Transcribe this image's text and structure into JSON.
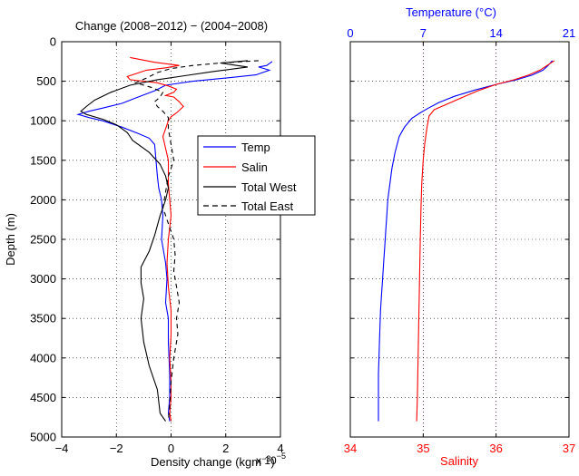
{
  "figure": {
    "background": "#ffffff"
  },
  "chart_data": [
    {
      "type": "line",
      "title": "Change (2008−2012) − (2004−2008)",
      "xlabel": "Density change (kgm",
      "xlabel_sup": "−3",
      "xlabel_tail": ")",
      "x_multiplier_base": "x 10",
      "x_multiplier_exp": "−5",
      "ylabel": "Depth (m)",
      "xlim": [
        -4,
        4
      ],
      "ylim": [
        5000,
        0
      ],
      "y_reversed": true,
      "x_ticks": [
        "−4",
        "−2",
        "0",
        "2",
        "4"
      ],
      "x_tick_values": [
        -4,
        -2,
        0,
        2,
        4
      ],
      "y_ticks": [
        "0",
        "500",
        "1000",
        "1500",
        "2000",
        "2500",
        "3000",
        "3500",
        "4000",
        "4500",
        "5000"
      ],
      "y_tick_values": [
        0,
        500,
        1000,
        1500,
        2000,
        2500,
        3000,
        3500,
        4000,
        4500,
        5000
      ],
      "grid": "dotted",
      "legend_position": "middle-right",
      "series": [
        {
          "name": "Temp",
          "color": "#0000ff",
          "dash": "solid",
          "points": [
            [
              3.7,
              250
            ],
            [
              3.5,
              300
            ],
            [
              3.2,
              320
            ],
            [
              3.6,
              360
            ],
            [
              3.1,
              420
            ],
            [
              2.0,
              460
            ],
            [
              0.8,
              500
            ],
            [
              -0.2,
              550
            ],
            [
              -0.6,
              620
            ],
            [
              -1.2,
              700
            ],
            [
              -1.8,
              780
            ],
            [
              -2.5,
              840
            ],
            [
              -3.0,
              880
            ],
            [
              -3.4,
              920
            ],
            [
              -3.0,
              960
            ],
            [
              -2.5,
              1000
            ],
            [
              -1.8,
              1080
            ],
            [
              -1.2,
              1160
            ],
            [
              -0.8,
              1220
            ],
            [
              -0.6,
              1300
            ],
            [
              -0.55,
              1500
            ],
            [
              -0.5,
              1700
            ],
            [
              -0.45,
              1850
            ],
            [
              -0.35,
              2000
            ],
            [
              -0.3,
              2200
            ],
            [
              -0.35,
              2500
            ],
            [
              -0.2,
              2800
            ],
            [
              -0.15,
              3000
            ],
            [
              -0.2,
              3300
            ],
            [
              -0.1,
              3500
            ],
            [
              -0.1,
              3800
            ],
            [
              -0.05,
              4200
            ],
            [
              -0.05,
              4500
            ],
            [
              -0.1,
              4700
            ],
            [
              -0.05,
              4800
            ]
          ]
        },
        {
          "name": "Salin",
          "color": "#ff0000",
          "dash": "solid",
          "points": [
            [
              -1.5,
              200
            ],
            [
              -0.6,
              260
            ],
            [
              0.3,
              300
            ],
            [
              -0.2,
              330
            ],
            [
              -0.9,
              360
            ],
            [
              -1.6,
              440
            ],
            [
              -1.5,
              480
            ],
            [
              -0.5,
              520
            ],
            [
              -0.1,
              560
            ],
            [
              0.2,
              600
            ],
            [
              0.1,
              640
            ],
            [
              -0.2,
              680
            ],
            [
              0.1,
              700
            ],
            [
              0.3,
              760
            ],
            [
              0.45,
              820
            ],
            [
              0.2,
              900
            ],
            [
              0.0,
              950
            ],
            [
              -0.1,
              1000
            ],
            [
              -0.2,
              1100
            ],
            [
              -0.3,
              1200
            ],
            [
              -0.1,
              1500
            ],
            [
              -0.1,
              1800
            ],
            [
              -0.05,
              2000
            ],
            [
              0.0,
              2200
            ],
            [
              -0.1,
              2500
            ],
            [
              -0.15,
              2800
            ],
            [
              -0.1,
              3100
            ],
            [
              0.0,
              3400
            ],
            [
              0.0,
              3700
            ],
            [
              -0.05,
              4000
            ],
            [
              0.0,
              4300
            ],
            [
              0.0,
              4500
            ],
            [
              -0.05,
              4700
            ],
            [
              0.0,
              4800
            ]
          ]
        },
        {
          "name": "Total West",
          "color": "#000000",
          "dash": "solid",
          "points": [
            [
              2.8,
              240
            ],
            [
              1.8,
              270
            ],
            [
              2.8,
              320
            ],
            [
              1.5,
              380
            ],
            [
              0.5,
              430
            ],
            [
              -0.5,
              480
            ],
            [
              -1.5,
              550
            ],
            [
              -2.2,
              640
            ],
            [
              -2.8,
              740
            ],
            [
              -3.1,
              820
            ],
            [
              -3.3,
              880
            ],
            [
              -3.1,
              920
            ],
            [
              -2.5,
              980
            ],
            [
              -2.0,
              1050
            ],
            [
              -1.6,
              1150
            ],
            [
              -1.4,
              1250
            ],
            [
              -0.8,
              1400
            ],
            [
              -0.4,
              1550
            ],
            [
              -0.2,
              1700
            ],
            [
              -0.1,
              1850
            ],
            [
              -0.2,
              2000
            ],
            [
              -0.4,
              2200
            ],
            [
              -0.6,
              2450
            ],
            [
              -0.8,
              2650
            ],
            [
              -1.1,
              2850
            ],
            [
              -1.1,
              3050
            ],
            [
              -1.0,
              3250
            ],
            [
              -1.1,
              3500
            ],
            [
              -1.0,
              3800
            ],
            [
              -0.8,
              4100
            ],
            [
              -0.5,
              4400
            ],
            [
              -0.4,
              4700
            ],
            [
              -0.2,
              4800
            ]
          ]
        },
        {
          "name": "Total East",
          "color": "#000000",
          "dash": "dashed",
          "points": [
            [
              3.2,
              240
            ],
            [
              1.8,
              270
            ],
            [
              0.8,
              300
            ],
            [
              0.0,
              340
            ],
            [
              -0.5,
              390
            ],
            [
              -0.9,
              460
            ],
            [
              -1.3,
              520
            ],
            [
              -0.7,
              580
            ],
            [
              -0.3,
              640
            ],
            [
              -0.4,
              700
            ],
            [
              -0.6,
              760
            ],
            [
              -0.5,
              820
            ],
            [
              -0.3,
              880
            ],
            [
              -0.1,
              960
            ],
            [
              -0.1,
              1100
            ],
            [
              0.0,
              1300
            ],
            [
              0.1,
              1500
            ],
            [
              -0.1,
              1700
            ],
            [
              -0.2,
              1900
            ],
            [
              -0.3,
              2100
            ],
            [
              -0.1,
              2300
            ],
            [
              0.1,
              2500
            ],
            [
              0.15,
              2700
            ],
            [
              0.1,
              2900
            ],
            [
              0.2,
              3100
            ],
            [
              0.3,
              3300
            ],
            [
              0.2,
              3500
            ],
            [
              0.25,
              3700
            ],
            [
              0.1,
              4000
            ],
            [
              0.0,
              4300
            ],
            [
              -0.05,
              4600
            ],
            [
              -0.1,
              4800
            ]
          ]
        }
      ]
    },
    {
      "type": "line",
      "top_label": "Temperature (°C)",
      "bottom_label": "Salinity",
      "top_color": "#0000ff",
      "bottom_color": "#ff0000",
      "top_xlim": [
        0,
        21
      ],
      "top_ticks": [
        "0",
        "7",
        "14",
        "21"
      ],
      "top_tick_values": [
        0,
        7,
        14,
        21
      ],
      "bottom_xlim": [
        34,
        37
      ],
      "bottom_ticks": [
        "34",
        "35",
        "36",
        "37"
      ],
      "bottom_tick_values": [
        34,
        35,
        36,
        37
      ],
      "ylim": [
        5000,
        0
      ],
      "y_reversed": true,
      "grid": "dotted",
      "series": [
        {
          "axis": "top",
          "color": "#0000ff",
          "points": [
            [
              19.4,
              240
            ],
            [
              19.0,
              300
            ],
            [
              18.5,
              360
            ],
            [
              17.5,
              420
            ],
            [
              16.0,
              480
            ],
            [
              14.0,
              540
            ],
            [
              12.0,
              610
            ],
            [
              10.0,
              690
            ],
            [
              8.5,
              770
            ],
            [
              7.5,
              840
            ],
            [
              6.7,
              900
            ],
            [
              5.9,
              970
            ],
            [
              5.2,
              1080
            ],
            [
              4.7,
              1200
            ],
            [
              4.3,
              1400
            ],
            [
              4.0,
              1600
            ],
            [
              3.8,
              1800
            ],
            [
              3.6,
              2000
            ],
            [
              3.5,
              2200
            ],
            [
              3.4,
              2400
            ],
            [
              3.3,
              2600
            ],
            [
              3.2,
              2800
            ],
            [
              3.1,
              3000
            ],
            [
              3.0,
              3200
            ],
            [
              2.9,
              3400
            ],
            [
              2.85,
              3600
            ],
            [
              2.8,
              3800
            ],
            [
              2.75,
              4000
            ],
            [
              2.7,
              4200
            ],
            [
              2.7,
              4500
            ],
            [
              2.7,
              4800
            ]
          ]
        },
        {
          "axis": "bottom",
          "color": "#ff0000",
          "points": [
            [
              36.8,
              240
            ],
            [
              36.7,
              300
            ],
            [
              36.6,
              360
            ],
            [
              36.45,
              420
            ],
            [
              36.25,
              480
            ],
            [
              36.0,
              540
            ],
            [
              35.75,
              620
            ],
            [
              35.55,
              700
            ],
            [
              35.35,
              780
            ],
            [
              35.15,
              860
            ],
            [
              35.08,
              940
            ],
            [
              35.05,
              1100
            ],
            [
              35.02,
              1300
            ],
            [
              35.0,
              1500
            ],
            [
              34.98,
              1800
            ],
            [
              34.97,
              2100
            ],
            [
              34.96,
              2500
            ],
            [
              34.95,
              3000
            ],
            [
              34.94,
              3500
            ],
            [
              34.93,
              4000
            ],
            [
              34.92,
              4500
            ],
            [
              34.91,
              4800
            ]
          ]
        }
      ]
    }
  ]
}
